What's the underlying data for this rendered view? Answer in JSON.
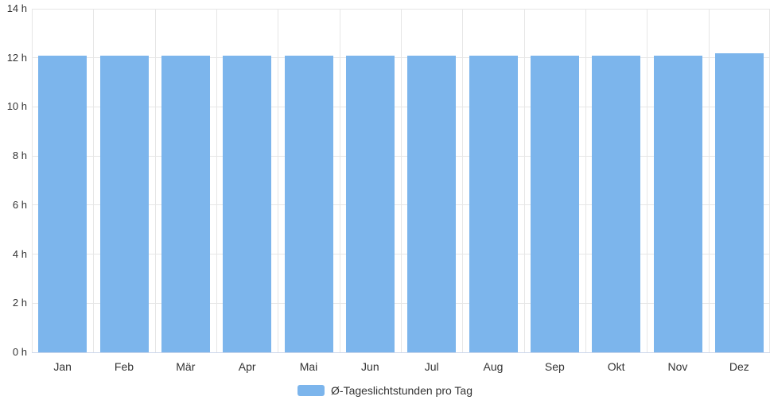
{
  "chart_data": {
    "type": "bar",
    "title": "",
    "xlabel": "",
    "ylabel": "",
    "unit": "h",
    "categories": [
      "Jan",
      "Feb",
      "Mär",
      "Apr",
      "Mai",
      "Jun",
      "Jul",
      "Aug",
      "Sep",
      "Okt",
      "Nov",
      "Dez"
    ],
    "values": [
      12.1,
      12.1,
      12.1,
      12.1,
      12.1,
      12.1,
      12.1,
      12.1,
      12.1,
      12.1,
      12.1,
      12.2
    ],
    "ylim": [
      0,
      14
    ],
    "y_ticks": [
      {
        "value": 0,
        "label": "0 h"
      },
      {
        "value": 2,
        "label": "2 h"
      },
      {
        "value": 4,
        "label": "4 h"
      },
      {
        "value": 6,
        "label": "6 h"
      },
      {
        "value": 8,
        "label": "8 h"
      },
      {
        "value": 10,
        "label": "10 h"
      },
      {
        "value": 12,
        "label": "12 h"
      },
      {
        "value": 14,
        "label": "14 h"
      }
    ],
    "grid": true,
    "legend_position": "bottom",
    "legend": "Ø-Tageslichtstunden pro Tag",
    "colors": {
      "bar": "#7cb5ec",
      "gridline": "#e6e6e6",
      "axis_line": "#ccd6eb",
      "text": "#333333",
      "background": "#ffffff"
    }
  }
}
